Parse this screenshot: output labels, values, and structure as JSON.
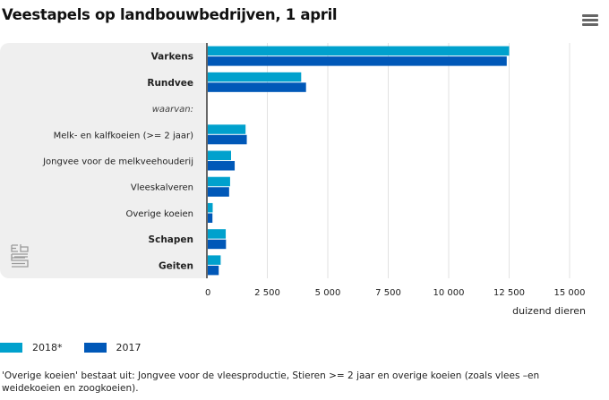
{
  "title": "Veestapels op landbouwbedrijven, 1 april",
  "menu": {
    "icon": "hamburger-menu-icon"
  },
  "logo": {
    "icon": "cbs-logo-icon"
  },
  "chart_data": {
    "type": "bar",
    "orientation": "horizontal",
    "title": "Veestapels op landbouwbedrijven, 1 april",
    "xlabel": "duizend dieren",
    "ylabel": "",
    "xlim": [
      0,
      15000
    ],
    "grid": true,
    "legend_position": "bottom-left",
    "x_ticks": [
      0,
      2500,
      5000,
      7500,
      10000,
      12500,
      15000
    ],
    "x_tick_labels": [
      "0",
      "2 500",
      "5 000",
      "7 500",
      "10 000",
      "12 500",
      "15 000"
    ],
    "categories": [
      {
        "label": "Varkens",
        "style": "bold"
      },
      {
        "label": "Rundvee",
        "style": "bold"
      },
      {
        "label": "waarvan:",
        "style": "italic"
      },
      {
        "label": "Melk- en kalfkoeien (>= 2 jaar)",
        "style": "normal"
      },
      {
        "label": "Jongvee voor de melkveehouderij",
        "style": "normal"
      },
      {
        "label": "Vleeskalveren",
        "style": "normal"
      },
      {
        "label": "Overige koeien",
        "style": "normal"
      },
      {
        "label": "Schapen",
        "style": "bold"
      },
      {
        "label": "Geiten",
        "style": "bold"
      }
    ],
    "series": [
      {
        "name": "2018*",
        "color": "#00a1cd",
        "values": [
          12500,
          3900,
          null,
          1600,
          1000,
          960,
          240,
          780,
          570
        ]
      },
      {
        "name": "2017",
        "color": "#0058b8",
        "values": [
          12400,
          4100,
          null,
          1650,
          1150,
          920,
          230,
          790,
          490
        ]
      }
    ]
  },
  "footnote": "'Overige koeien' bestaat uit: Jongvee voor de vleesproductie, Stieren >= 2 jaar en overige koeien (zoals vlees –en weidekoeien en zoogkoeien)."
}
